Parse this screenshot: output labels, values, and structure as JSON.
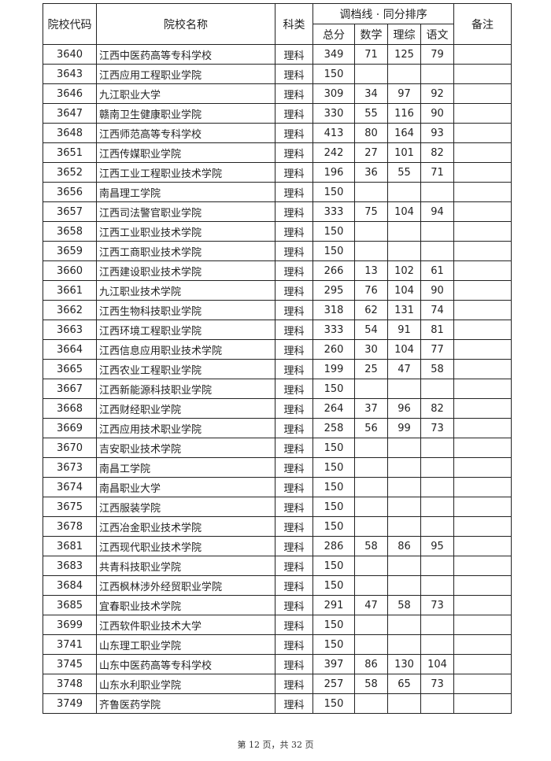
{
  "header": {
    "code": "院校代码",
    "name": "院校名称",
    "category": "科类",
    "group": "调档线 · 同分排序",
    "total": "总分",
    "math": "数学",
    "science": "理综",
    "chinese": "语文",
    "note": "备注"
  },
  "rows": [
    {
      "code": "3640",
      "name": "江西中医药高等专科学校",
      "category": "理科",
      "total": "349",
      "math": "71",
      "science": "125",
      "chinese": "79"
    },
    {
      "code": "3643",
      "name": "江西应用工程职业学院",
      "category": "理科",
      "total": "150",
      "math": "",
      "science": "",
      "chinese": ""
    },
    {
      "code": "3646",
      "name": "九江职业大学",
      "category": "理科",
      "total": "309",
      "math": "34",
      "science": "97",
      "chinese": "92"
    },
    {
      "code": "3647",
      "name": "赣南卫生健康职业学院",
      "category": "理科",
      "total": "330",
      "math": "55",
      "science": "116",
      "chinese": "90"
    },
    {
      "code": "3648",
      "name": "江西师范高等专科学校",
      "category": "理科",
      "total": "413",
      "math": "80",
      "science": "164",
      "chinese": "93"
    },
    {
      "code": "3651",
      "name": "江西传媒职业学院",
      "category": "理科",
      "total": "242",
      "math": "27",
      "science": "101",
      "chinese": "82"
    },
    {
      "code": "3652",
      "name": "江西工业工程职业技术学院",
      "category": "理科",
      "total": "196",
      "math": "36",
      "science": "55",
      "chinese": "71"
    },
    {
      "code": "3656",
      "name": "南昌理工学院",
      "category": "理科",
      "total": "150",
      "math": "",
      "science": "",
      "chinese": ""
    },
    {
      "code": "3657",
      "name": "江西司法警官职业学院",
      "category": "理科",
      "total": "333",
      "math": "75",
      "science": "104",
      "chinese": "94"
    },
    {
      "code": "3658",
      "name": "江西工业职业技术学院",
      "category": "理科",
      "total": "150",
      "math": "",
      "science": "",
      "chinese": ""
    },
    {
      "code": "3659",
      "name": "江西工商职业技术学院",
      "category": "理科",
      "total": "150",
      "math": "",
      "science": "",
      "chinese": ""
    },
    {
      "code": "3660",
      "name": "江西建设职业技术学院",
      "category": "理科",
      "total": "266",
      "math": "13",
      "science": "102",
      "chinese": "61"
    },
    {
      "code": "3661",
      "name": "九江职业技术学院",
      "category": "理科",
      "total": "295",
      "math": "76",
      "science": "104",
      "chinese": "90"
    },
    {
      "code": "3662",
      "name": "江西生物科技职业学院",
      "category": "理科",
      "total": "318",
      "math": "62",
      "science": "131",
      "chinese": "74"
    },
    {
      "code": "3663",
      "name": "江西环境工程职业学院",
      "category": "理科",
      "total": "333",
      "math": "54",
      "science": "91",
      "chinese": "81"
    },
    {
      "code": "3664",
      "name": "江西信息应用职业技术学院",
      "category": "理科",
      "total": "260",
      "math": "30",
      "science": "104",
      "chinese": "77"
    },
    {
      "code": "3665",
      "name": "江西农业工程职业学院",
      "category": "理科",
      "total": "199",
      "math": "25",
      "science": "47",
      "chinese": "58"
    },
    {
      "code": "3667",
      "name": "江西新能源科技职业学院",
      "category": "理科",
      "total": "150",
      "math": "",
      "science": "",
      "chinese": ""
    },
    {
      "code": "3668",
      "name": "江西财经职业学院",
      "category": "理科",
      "total": "264",
      "math": "37",
      "science": "96",
      "chinese": "82"
    },
    {
      "code": "3669",
      "name": "江西应用技术职业学院",
      "category": "理科",
      "total": "258",
      "math": "56",
      "science": "99",
      "chinese": "73"
    },
    {
      "code": "3670",
      "name": "吉安职业技术学院",
      "category": "理科",
      "total": "150",
      "math": "",
      "science": "",
      "chinese": ""
    },
    {
      "code": "3673",
      "name": "南昌工学院",
      "category": "理科",
      "total": "150",
      "math": "",
      "science": "",
      "chinese": ""
    },
    {
      "code": "3674",
      "name": "南昌职业大学",
      "category": "理科",
      "total": "150",
      "math": "",
      "science": "",
      "chinese": ""
    },
    {
      "code": "3675",
      "name": "江西服装学院",
      "category": "理科",
      "total": "150",
      "math": "",
      "science": "",
      "chinese": ""
    },
    {
      "code": "3678",
      "name": "江西冶金职业技术学院",
      "category": "理科",
      "total": "150",
      "math": "",
      "science": "",
      "chinese": ""
    },
    {
      "code": "3681",
      "name": "江西现代职业技术学院",
      "category": "理科",
      "total": "286",
      "math": "58",
      "science": "86",
      "chinese": "95"
    },
    {
      "code": "3683",
      "name": "共青科技职业学院",
      "category": "理科",
      "total": "150",
      "math": "",
      "science": "",
      "chinese": ""
    },
    {
      "code": "3684",
      "name": "江西枫林涉外经贸职业学院",
      "category": "理科",
      "total": "150",
      "math": "",
      "science": "",
      "chinese": ""
    },
    {
      "code": "3685",
      "name": "宜春职业技术学院",
      "category": "理科",
      "total": "291",
      "math": "47",
      "science": "58",
      "chinese": "73"
    },
    {
      "code": "3699",
      "name": "江西软件职业技术大学",
      "category": "理科",
      "total": "150",
      "math": "",
      "science": "",
      "chinese": ""
    },
    {
      "code": "3741",
      "name": "山东理工职业学院",
      "category": "理科",
      "total": "150",
      "math": "",
      "science": "",
      "chinese": ""
    },
    {
      "code": "3745",
      "name": "山东中医药高等专科学校",
      "category": "理科",
      "total": "397",
      "math": "86",
      "science": "130",
      "chinese": "104"
    },
    {
      "code": "3748",
      "name": "山东水利职业学院",
      "category": "理科",
      "total": "257",
      "math": "58",
      "science": "65",
      "chinese": "73"
    },
    {
      "code": "3749",
      "name": "齐鲁医药学院",
      "category": "理科",
      "total": "150",
      "math": "",
      "science": "",
      "chinese": ""
    }
  ],
  "footer": "第 12 页，共 32 页"
}
